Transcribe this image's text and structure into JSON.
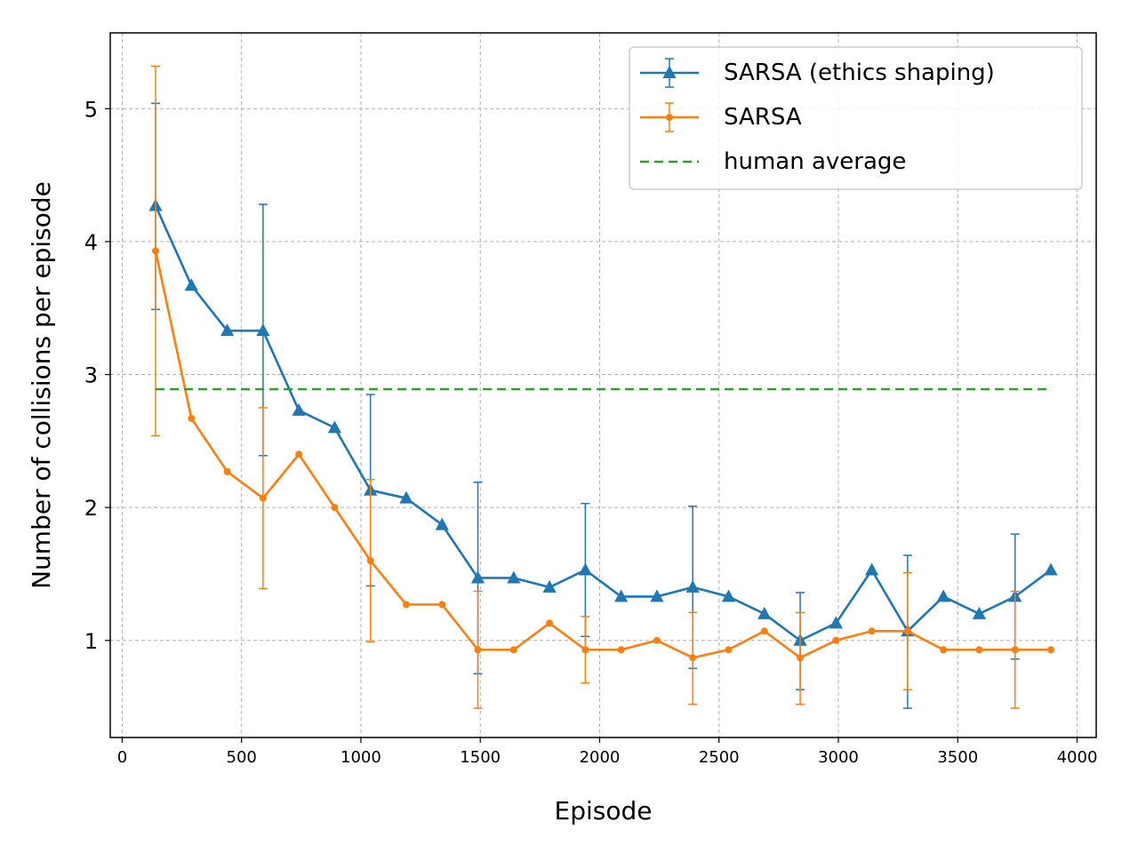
{
  "chart_data": {
    "type": "line",
    "title": "",
    "xlabel": "Episode",
    "ylabel": "Number of collisions per episode",
    "xlim": [
      -50,
      4080
    ],
    "ylim": [
      0.27,
      5.57
    ],
    "xticks": [
      0,
      500,
      1000,
      1500,
      2000,
      2500,
      3000,
      3500,
      4000
    ],
    "yticks": [
      1,
      2,
      3,
      4,
      5
    ],
    "grid": true,
    "legend_position": "top-right",
    "series": [
      {
        "name": "SARSA (ethics shaping)",
        "color": "#1f77b4",
        "marker": "triangle",
        "x": [
          140,
          290,
          440,
          590,
          740,
          890,
          1040,
          1190,
          1340,
          1490,
          1640,
          1790,
          1940,
          2090,
          2240,
          2390,
          2540,
          2690,
          2840,
          2990,
          3140,
          3290,
          3440,
          3590,
          3740,
          3890
        ],
        "y": [
          4.27,
          3.67,
          3.33,
          3.33,
          2.73,
          2.6,
          2.13,
          2.07,
          1.87,
          1.47,
          1.47,
          1.4,
          1.53,
          1.33,
          1.33,
          1.4,
          1.33,
          1.2,
          1.0,
          1.13,
          1.53,
          1.07,
          1.33,
          1.2,
          1.33,
          1.53
        ],
        "errors": [
          {
            "x": 140,
            "low": 3.49,
            "high": 5.04
          },
          {
            "x": 590,
            "low": 2.39,
            "high": 4.28
          },
          {
            "x": 1040,
            "low": 1.41,
            "high": 2.85
          },
          {
            "x": 1490,
            "low": 0.75,
            "high": 2.19
          },
          {
            "x": 1940,
            "low": 1.03,
            "high": 2.03
          },
          {
            "x": 2390,
            "low": 0.79,
            "high": 2.01
          },
          {
            "x": 2840,
            "low": 0.63,
            "high": 1.36
          },
          {
            "x": 3290,
            "low": 0.49,
            "high": 1.64
          },
          {
            "x": 3740,
            "low": 0.86,
            "high": 1.8
          }
        ]
      },
      {
        "name": "SARSA",
        "color": "#ff7f0e",
        "marker": "circle",
        "x": [
          140,
          290,
          440,
          590,
          740,
          890,
          1040,
          1190,
          1340,
          1490,
          1640,
          1790,
          1940,
          2090,
          2240,
          2390,
          2540,
          2690,
          2840,
          2990,
          3140,
          3290,
          3440,
          3590,
          3740,
          3890
        ],
        "y": [
          3.93,
          2.67,
          2.27,
          2.07,
          2.4,
          2.0,
          1.6,
          1.27,
          1.27,
          0.93,
          0.93,
          1.13,
          0.93,
          0.93,
          1.0,
          0.87,
          0.93,
          1.07,
          0.87,
          1.0,
          1.07,
          1.07,
          0.93,
          0.93,
          0.93,
          0.93
        ],
        "errors": [
          {
            "x": 140,
            "low": 2.54,
            "high": 5.32
          },
          {
            "x": 590,
            "low": 1.39,
            "high": 2.75
          },
          {
            "x": 1040,
            "low": 0.99,
            "high": 2.21
          },
          {
            "x": 1490,
            "low": 0.49,
            "high": 1.37
          },
          {
            "x": 1940,
            "low": 0.68,
            "high": 1.18
          },
          {
            "x": 2390,
            "low": 0.52,
            "high": 1.21
          },
          {
            "x": 2840,
            "low": 0.52,
            "high": 1.21
          },
          {
            "x": 3290,
            "low": 0.63,
            "high": 1.51
          },
          {
            "x": 3740,
            "low": 0.49,
            "high": 1.37
          }
        ]
      },
      {
        "name": "human average",
        "color": "#2ca02c",
        "style": "dashed",
        "x": [
          140,
          3890
        ],
        "y": [
          2.89,
          2.89
        ]
      }
    ]
  }
}
